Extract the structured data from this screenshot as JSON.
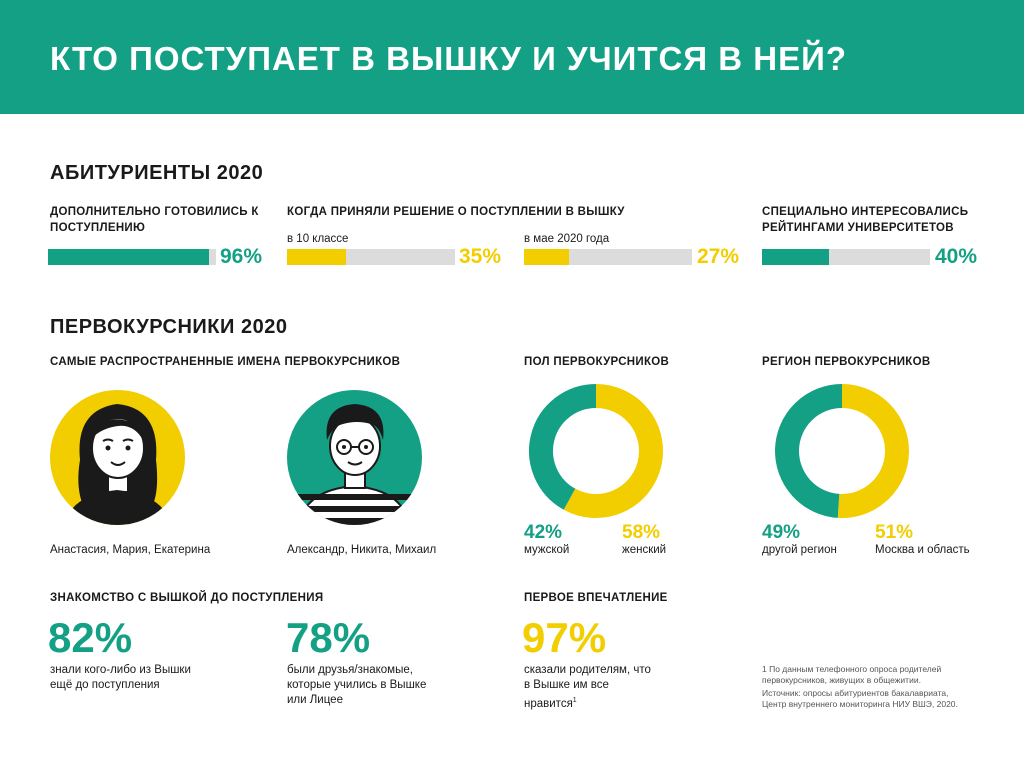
{
  "colors": {
    "teal": "#14a085",
    "yellow": "#f2cd00",
    "gray": "#dcdcdc",
    "dark": "#1a1a1a"
  },
  "header": {
    "title": "КТО ПОСТУПАЕТ В ВЫШКУ И УЧИТСЯ В НЕЙ?"
  },
  "applicants": {
    "title": "АБИТУРИЕНТЫ 2020",
    "prep": {
      "label": "ДОПОЛНИТЕЛЬНО ГОТОВИЛИСЬ К ПОСТУПЛЕНИЮ",
      "value": 96,
      "value_text": "96%"
    },
    "decision": {
      "label": "КОГДА ПРИНЯЛИ РЕШЕНИЕ О ПОСТУПЛЕНИИ В ВЫШКУ",
      "grade10": {
        "label": "в 10 классе",
        "value": 35,
        "value_text": "35%"
      },
      "may2020": {
        "label": "в мае 2020 года",
        "value": 27,
        "value_text": "27%"
      }
    },
    "ratings": {
      "label": "СПЕЦИАЛЬНО ИНТЕРЕСОВАЛИСЬ РЕЙТИНГАМИ УНИВЕРСИТЕТОВ",
      "value": 40,
      "value_text": "40%"
    }
  },
  "freshmen": {
    "title": "ПЕРВОКУРСНИКИ 2020",
    "names": {
      "label": "САМЫЕ РАСПРОСТРАНЕННЫЕ ИМЕНА ПЕРВОКУРСНИКОВ",
      "female": "Анастасия, Мария, Екатерина",
      "male": "Александр, Никита, Михаил"
    },
    "gender": {
      "label": "ПОЛ ПЕРВОКУРСНИКОВ",
      "male_pct": "42%",
      "male_label": "мужской",
      "female_pct": "58%",
      "female_label": "женский"
    },
    "region": {
      "label": "РЕГИОН ПЕРВОКУРСНИКОВ",
      "other_pct": "49%",
      "other_label": "другой регион",
      "moscow_pct": "51%",
      "moscow_label": "Москва и область"
    },
    "acquaintance": {
      "label": "ЗНАКОМСТВО С ВЫШКОЙ ДО ПОСТУПЛЕНИЯ",
      "stat1_value": "82%",
      "stat1_text": "знали кого-либо из Вышки ещё до поступления",
      "stat2_value": "78%",
      "stat2_text": "были друзья/знакомые, которые учились в Вышке или Лицее"
    },
    "impression": {
      "label": "ПЕРВОЕ ВПЕЧАТЛЕНИЕ",
      "value": "97%",
      "text": "сказали родителям, что в Вышке им все нравится",
      "footnote_mark": "1"
    }
  },
  "notes": {
    "footnote": "1 По данным телефонного опроса родителей первокурсников, живущих в общежитии.",
    "source": "Источник: опросы абитуриентов бакалавриата, Центр внутреннего мониторинга НИУ ВШЭ, 2020."
  },
  "chart_data": [
    {
      "type": "bar",
      "title": "ДОПОЛНИТЕЛЬНО ГОТОВИЛИСЬ К ПОСТУПЛЕНИЮ",
      "categories": [
        ""
      ],
      "values": [
        96
      ],
      "ylim": [
        0,
        100
      ]
    },
    {
      "type": "bar",
      "title": "КОГДА ПРИНЯЛИ РЕШЕНИЕ О ПОСТУПЛЕНИИ В ВЫШКУ",
      "categories": [
        "в 10 классе",
        "в мае 2020 года"
      ],
      "values": [
        35,
        27
      ],
      "ylim": [
        0,
        100
      ]
    },
    {
      "type": "bar",
      "title": "СПЕЦИАЛЬНО ИНТЕРЕСОВАЛИСЬ РЕЙТИНГАМИ УНИВЕРСИТЕТОВ",
      "categories": [
        ""
      ],
      "values": [
        40
      ],
      "ylim": [
        0,
        100
      ]
    },
    {
      "type": "pie",
      "title": "ПОЛ ПЕРВОКУРСНИКОВ",
      "categories": [
        "мужской",
        "женский"
      ],
      "values": [
        42,
        58
      ]
    },
    {
      "type": "pie",
      "title": "РЕГИОН ПЕРВОКУРСНИКОВ",
      "categories": [
        "другой регион",
        "Москва и область"
      ],
      "values": [
        49,
        51
      ]
    }
  ]
}
